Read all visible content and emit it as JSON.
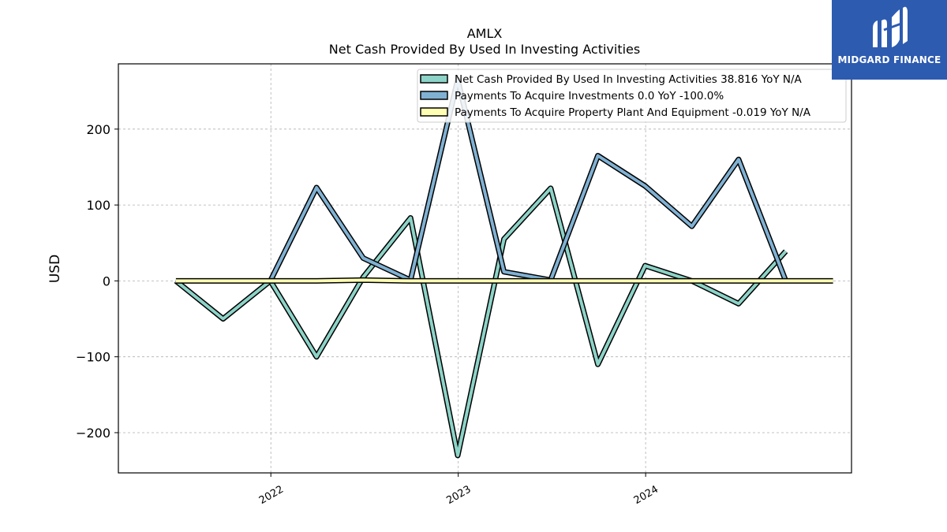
{
  "chart_data": {
    "type": "line",
    "title": "AMLX",
    "subtitle": "Net Cash Provided By Used In Investing Activities",
    "ylabel": "USD",
    "xlabel": "",
    "x_ticks": [
      "2022",
      "2023",
      "2024"
    ],
    "y_ticks": [
      -200,
      -100,
      0,
      100,
      200
    ],
    "ylim": [
      -253,
      286
    ],
    "xlim": [
      "2021-03-10",
      "2025-02-05"
    ],
    "grid": true,
    "legend_position": "top-right",
    "x": [
      "2021-06-30",
      "2021-09-30",
      "2021-12-31",
      "2022-03-31",
      "2022-06-30",
      "2022-09-30",
      "2022-12-31",
      "2023-03-31",
      "2023-06-30",
      "2023-09-30",
      "2023-12-31",
      "2024-03-31",
      "2024-06-30",
      "2024-09-30",
      "2024-12-31"
    ],
    "series": [
      {
        "name": "Net Cash Provided By Used In Investing Activities",
        "legend_label": "Net Cash Provided By Used In Investing Activities  38.816 YoY N/A",
        "color": "#8dd3c7",
        "values": [
          0,
          -50,
          0,
          -100,
          5,
          83,
          -230,
          55,
          122,
          -110,
          20,
          0,
          -30,
          39,
          null
        ]
      },
      {
        "name": "Payments To Acquire Investments",
        "legend_label": "Payments To Acquire Investments  0.0 YoY -100.0%",
        "color": "#80b1d3",
        "values": [
          null,
          null,
          0,
          123,
          30,
          1,
          265,
          12,
          1,
          165,
          125,
          72,
          160,
          0,
          null
        ]
      },
      {
        "name": "Payments To Acquire Property Plant And Equipment",
        "legend_label": "Payments To Acquire Property Plant And Equipment  -0.019 YoY N/A",
        "color": "#ffffb3",
        "values": [
          0,
          0,
          0,
          0,
          1,
          0,
          0,
          0,
          0,
          0,
          0,
          0,
          0,
          0,
          0
        ]
      }
    ]
  },
  "logo": {
    "text": "MIDGARD FINANCE",
    "color": "#2d5bb0"
  }
}
